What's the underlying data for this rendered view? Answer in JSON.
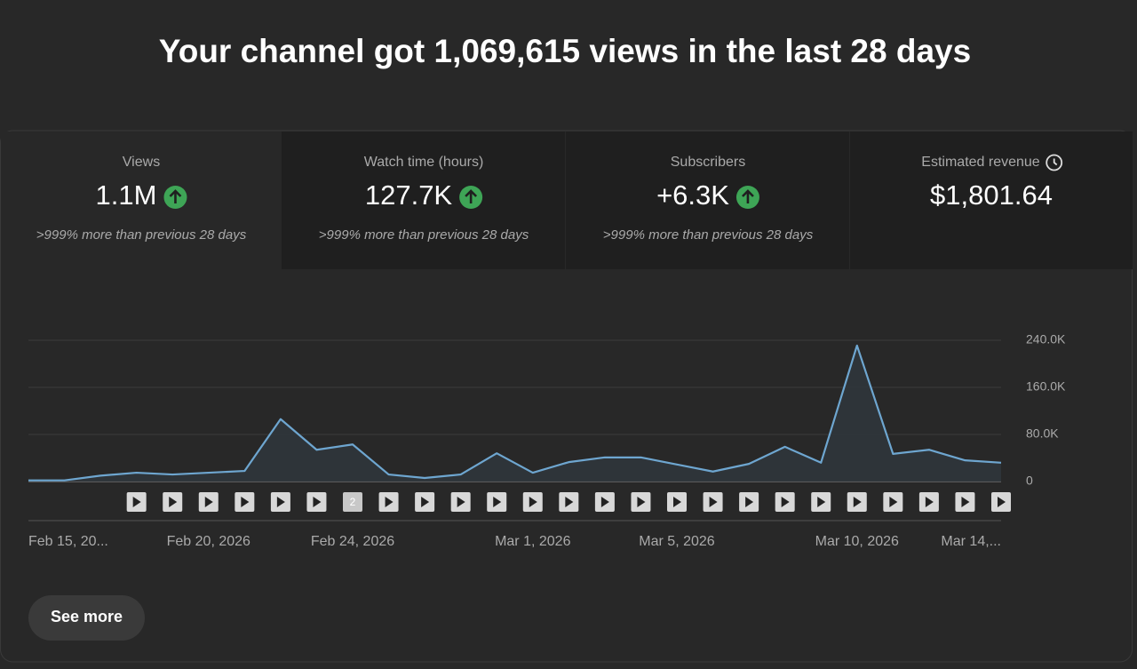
{
  "header": {
    "title": "Your channel got 1,069,615 views in the last 28 days"
  },
  "cards": [
    {
      "label": "Views",
      "value": "1.1M",
      "change": ">999% more than previous 28 days",
      "trend": "up",
      "selected": true
    },
    {
      "label": "Watch time (hours)",
      "value": "127.7K",
      "change": ">999% more than previous 28 days",
      "trend": "up"
    },
    {
      "label": "Subscribers",
      "value": "+6.3K",
      "change": ">999% more than previous 28 days",
      "trend": "up"
    },
    {
      "label": "Estimated revenue",
      "value": "$1,801.64",
      "info_icon": true
    }
  ],
  "chart_data": {
    "type": "area",
    "categories": [
      "Feb 15, 20...",
      null,
      null,
      null,
      null,
      "Feb 20, 2026",
      null,
      null,
      null,
      "Feb 24, 2026",
      null,
      null,
      null,
      null,
      "Mar 1, 2026",
      null,
      null,
      null,
      "Mar 5, 2026",
      null,
      null,
      null,
      null,
      "Mar 10, 2026",
      null,
      null,
      null,
      "Mar 14,..."
    ],
    "values": [
      2000,
      2000,
      10000,
      15000,
      12000,
      15000,
      18000,
      106000,
      54000,
      63000,
      12000,
      6000,
      12000,
      48000,
      15000,
      33000,
      41000,
      41000,
      29000,
      17000,
      30000,
      59000,
      32000,
      231000,
      47000,
      54000,
      36000,
      32000
    ],
    "video_counts": [
      null,
      null,
      null,
      1,
      1,
      1,
      1,
      1,
      1,
      2,
      1,
      1,
      1,
      1,
      1,
      1,
      1,
      1,
      1,
      1,
      1,
      1,
      1,
      1,
      1,
      1,
      1,
      1
    ],
    "color": "#6ea6d0",
    "ylim": [
      0,
      240000
    ],
    "yticks": [
      0,
      {
        "value": 80000,
        "label": "80.0K"
      },
      {
        "value": 160000,
        "label": "160.0K"
      },
      {
        "value": 240000,
        "label": "240.0K"
      }
    ],
    "grid": true
  },
  "button": {
    "label": "See more"
  }
}
